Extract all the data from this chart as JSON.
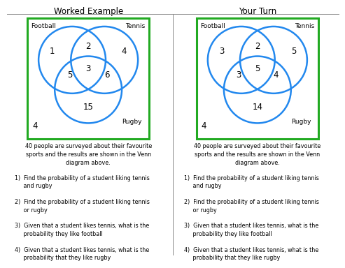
{
  "title_left": "Worked Example",
  "title_right": "Your Turn",
  "bg_color": "#ffffff",
  "border_color": "#22aa22",
  "circle_color": "#2288ee",
  "circle_linewidth": 1.8,
  "divider_color": "#888888",
  "left_venn": {
    "football_label": "Football",
    "tennis_label": "Tennis",
    "rugby_label": "Rugby",
    "n1": "1",
    "n2": "2",
    "n3": "4",
    "n4": "5",
    "n5": "3",
    "n6": "6",
    "n7": "15",
    "n_outside": "4"
  },
  "right_venn": {
    "football_label": "Football",
    "tennis_label": "Tennis",
    "rugby_label": "Rugby",
    "n1": "3",
    "n2": "2",
    "n3": "5",
    "n4": "3",
    "n5": "5",
    "n6": "4",
    "n7": "14",
    "n_outside": "4"
  },
  "q_intro": "40 people are surveyed about their favourite\nsports and the results are shown in the Venn\ndiagram above.",
  "questions": [
    "1)  Find the probability of a student liking tennis\n     and rugby",
    "2)  Find the probability of a student liking tennis\n     or rugby",
    "3)  Given that a student likes tennis, what is the\n     probability they like football",
    "4)  Given that a student likes tennis, what is the\n     probability that they like rugby"
  ],
  "title_fontsize": 8.5,
  "label_fontsize": 6.5,
  "number_fontsize": 8.5,
  "question_fontsize": 5.8
}
